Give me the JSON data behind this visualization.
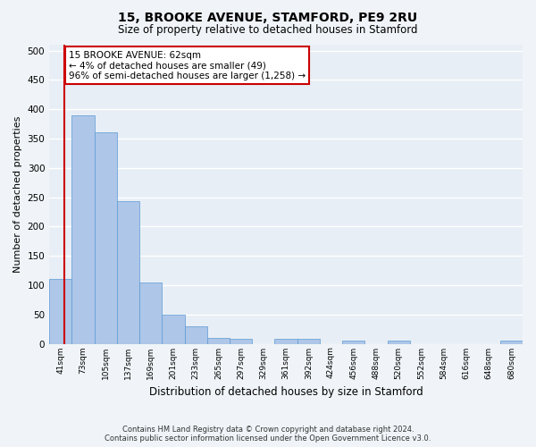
{
  "title": "15, BROOKE AVENUE, STAMFORD, PE9 2RU",
  "subtitle": "Size of property relative to detached houses in Stamford",
  "xlabel": "Distribution of detached houses by size in Stamford",
  "ylabel": "Number of detached properties",
  "categories": [
    "41sqm",
    "73sqm",
    "105sqm",
    "137sqm",
    "169sqm",
    "201sqm",
    "233sqm",
    "265sqm",
    "297sqm",
    "329sqm",
    "361sqm",
    "392sqm",
    "424sqm",
    "456sqm",
    "488sqm",
    "520sqm",
    "552sqm",
    "584sqm",
    "616sqm",
    "648sqm",
    "680sqm"
  ],
  "values": [
    110,
    390,
    360,
    243,
    104,
    50,
    30,
    10,
    8,
    0,
    8,
    8,
    0,
    5,
    0,
    5,
    0,
    0,
    0,
    0,
    5
  ],
  "bar_color": "#aec6e8",
  "bar_edge_color": "#5b9bd5",
  "background_color": "#e8eef5",
  "fig_background_color": "#f0f4f8",
  "grid_color": "#ffffff",
  "annotation_box_edgecolor": "#cc0000",
  "annotation_line1": "15 BROOKE AVENUE: 62sqm",
  "annotation_line2": "← 4% of detached houses are smaller (49)",
  "annotation_line3": "96% of semi-detached houses are larger (1,258) →",
  "marker_color": "#cc0000",
  "ylim": [
    0,
    510
  ],
  "yticks": [
    0,
    50,
    100,
    150,
    200,
    250,
    300,
    350,
    400,
    450,
    500
  ],
  "footer_line1": "Contains HM Land Registry data © Crown copyright and database right 2024.",
  "footer_line2": "Contains public sector information licensed under the Open Government Licence v3.0."
}
